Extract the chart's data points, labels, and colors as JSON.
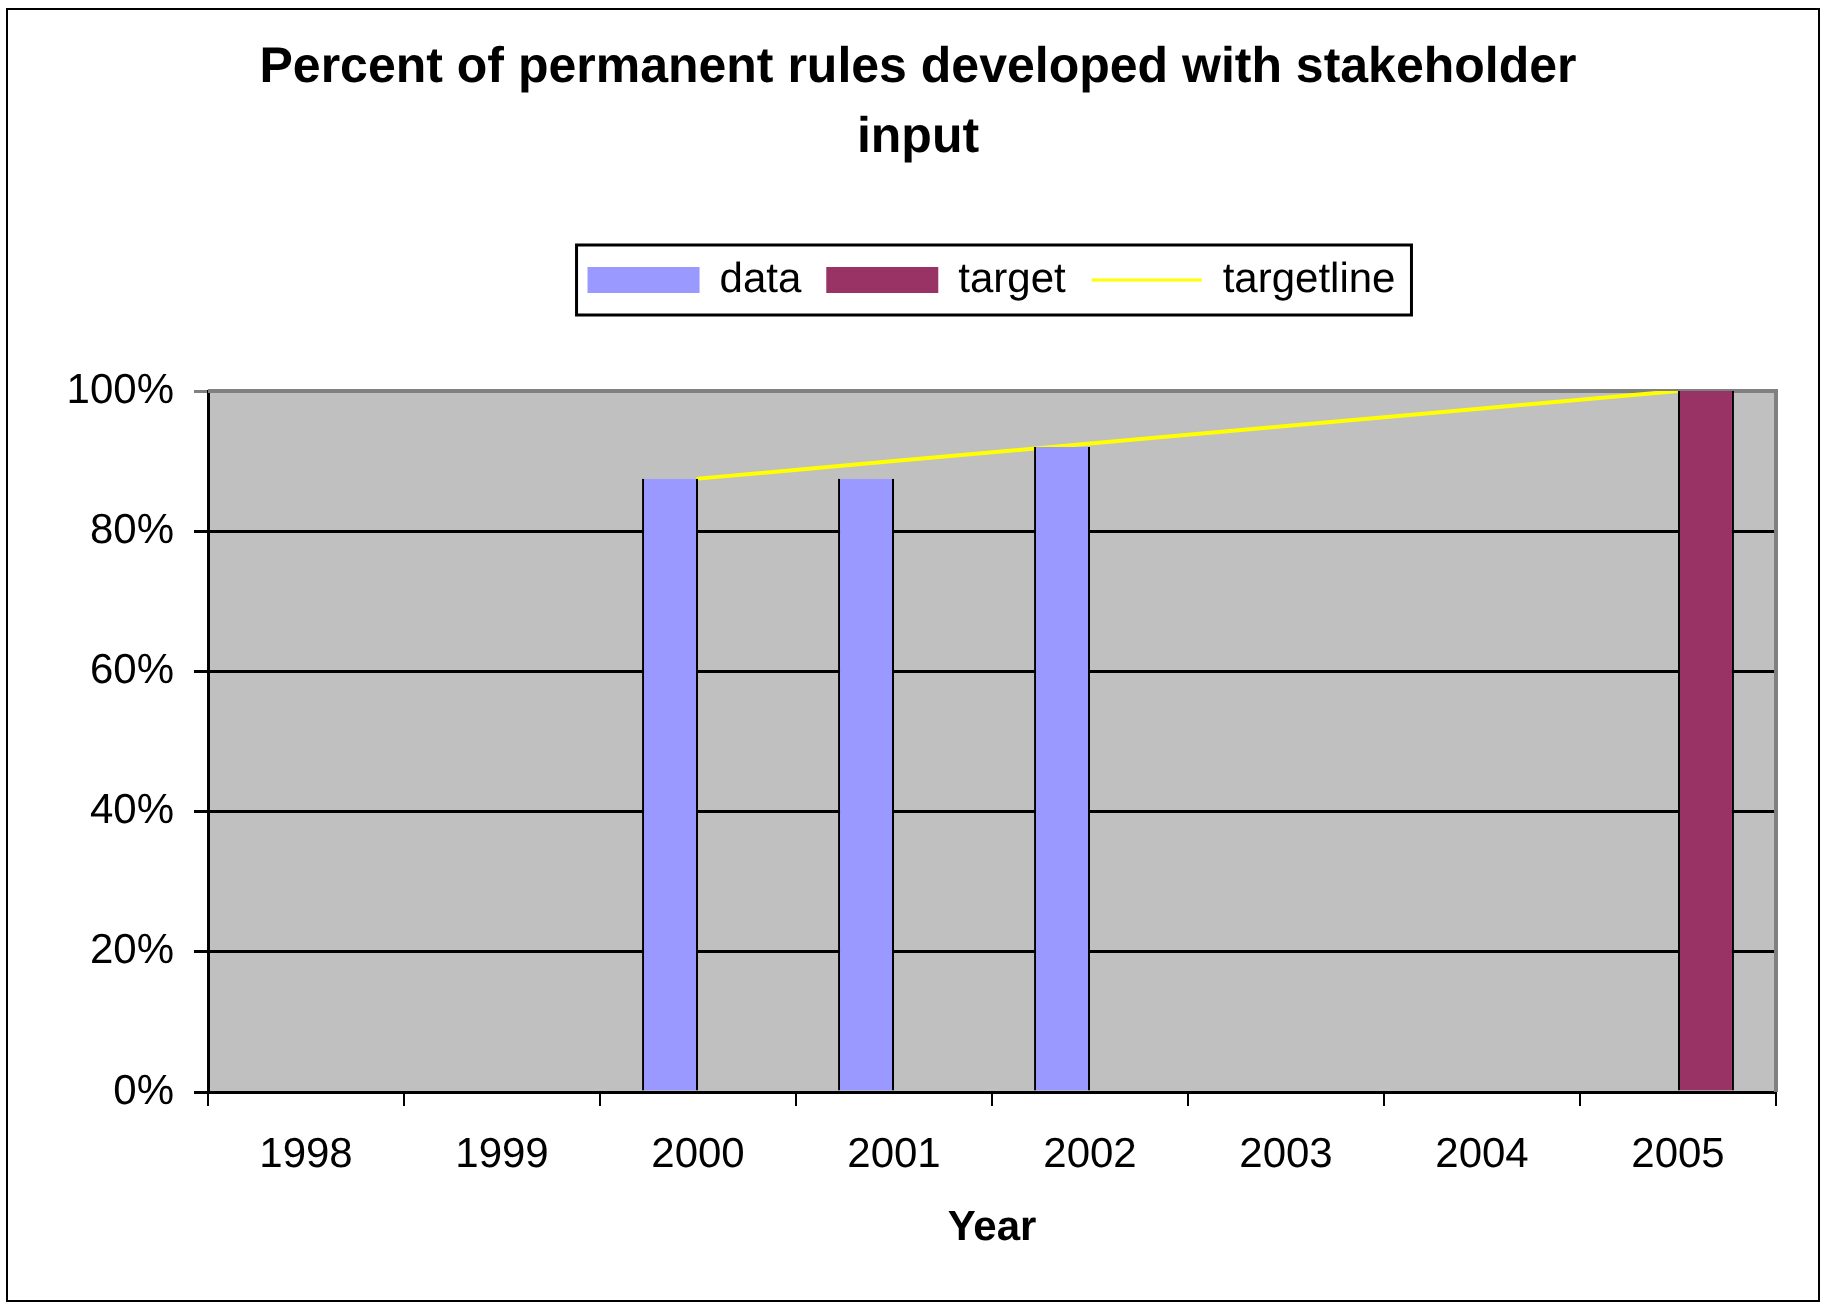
{
  "chart_data": {
    "type": "bar",
    "title": "Percent of permanent rules developed with stakeholder input",
    "xlabel": "Year",
    "categories": [
      "1998",
      "1999",
      "2000",
      "2001",
      "2002",
      "2003",
      "2004",
      "2005"
    ],
    "series": [
      {
        "name": "data",
        "color": "#9999ff",
        "values": [
          null,
          null,
          87.5,
          87.5,
          92,
          null,
          null,
          null
        ]
      },
      {
        "name": "target",
        "color": "#993366",
        "values": [
          null,
          null,
          null,
          null,
          null,
          null,
          null,
          100
        ]
      },
      {
        "name": "targetline",
        "type": "line",
        "color": "#ffff00",
        "values": [
          null,
          null,
          87.5,
          90,
          92.5,
          95,
          97.5,
          100
        ]
      }
    ],
    "ylim": [
      0,
      100
    ],
    "yticks": [
      {
        "value": 0,
        "label": "0%"
      },
      {
        "value": 20,
        "label": "20%"
      },
      {
        "value": 40,
        "label": "40%"
      },
      {
        "value": 60,
        "label": "60%"
      },
      {
        "value": 80,
        "label": "80%"
      },
      {
        "value": 100,
        "label": "100%"
      }
    ],
    "grid": "y",
    "legend": "top",
    "marker": "none"
  }
}
